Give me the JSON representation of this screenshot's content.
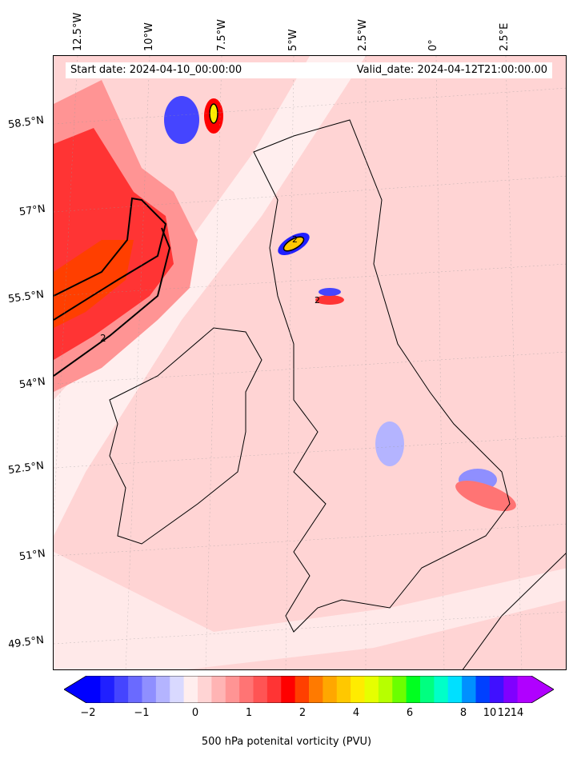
{
  "header": {
    "start_date": "Start date: 2024-04-10_00:00:00",
    "valid_date": "Valid_date: 2024-04-12T21:00:00.00"
  },
  "lon_labels": [
    "12.5°W",
    "10°W",
    "7.5°W",
    "5°W",
    "2.5°W",
    "0°",
    "2.5°E"
  ],
  "lat_labels": [
    "58.5°N",
    "57°N",
    "55.5°N",
    "54°N",
    "52.5°N",
    "51°N",
    "49.5°N"
  ],
  "contour_labels": [
    "2",
    "2",
    "2"
  ],
  "colorbar": {
    "label": "500 hPa potenital vorticity (PVU)",
    "ticks": [
      "−2",
      "−1",
      "0",
      "1",
      "2",
      "4",
      "6",
      "8",
      "10",
      "12",
      "14"
    ],
    "colors": [
      "#0000ff",
      "#2020ff",
      "#4545ff",
      "#6a6aff",
      "#8f8fff",
      "#b4b4ff",
      "#d9d9ff",
      "#ffeeee",
      "#ffd4d4",
      "#ffb4b4",
      "#ff9494",
      "#ff7474",
      "#ff5454",
      "#ff3434",
      "#ff0000",
      "#ff3f00",
      "#ff7a00",
      "#ffa700",
      "#ffc800",
      "#ffec00",
      "#e6ff00",
      "#b7ff00",
      "#6bff00",
      "#00ff20",
      "#00ff80",
      "#00ffc8",
      "#00e0ff",
      "#0090ff",
      "#0040ff",
      "#4010ff",
      "#8000ff",
      "#b000ff"
    ]
  },
  "colors": {
    "background": "#ffd4d4",
    "strong_red": "#ff0000",
    "orange": "#ff7a00",
    "blue": "#2020ff",
    "coast": "#000000"
  }
}
